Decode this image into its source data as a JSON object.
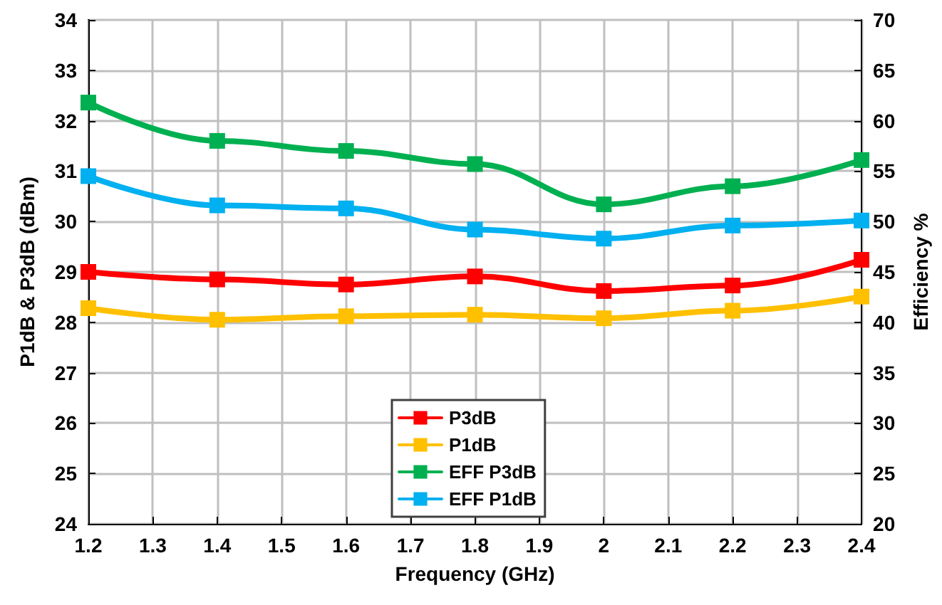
{
  "chart_data": {
    "type": "line",
    "xlabel": "Frequency (GHz)",
    "ylabel": "P1dB & P3dB (dBm)",
    "y2label": "Efficiency %",
    "x": [
      1.2,
      1.4,
      1.6,
      1.8,
      2.0,
      2.2,
      2.4
    ],
    "series": [
      {
        "name": "P3dB",
        "color": "#ff0000",
        "values": [
          29.0,
          28.85,
          28.75,
          28.91,
          28.62,
          28.73,
          29.24
        ]
      },
      {
        "name": "P1dB",
        "color": "#ffc000",
        "values": [
          28.28,
          28.05,
          28.12,
          28.15,
          28.08,
          28.23,
          28.51
        ]
      },
      {
        "name": "EFF P3dB",
        "color": "#00b050",
        "axis": "y2",
        "values": [
          61.8,
          58.0,
          57.0,
          55.7,
          51.7,
          53.5,
          56.1
        ]
      },
      {
        "name": "EFF P1dB",
        "color": "#00b0f0",
        "axis": "y2",
        "values": [
          54.5,
          51.6,
          51.3,
          49.2,
          48.3,
          49.6,
          50.1
        ]
      }
    ],
    "xlim": [
      1.2,
      2.4
    ],
    "xticks": [
      1.2,
      1.3,
      1.4,
      1.5,
      1.6,
      1.7,
      1.8,
      1.9,
      2,
      2.1,
      2.2,
      2.3,
      2.4
    ],
    "ylim": [
      24,
      34
    ],
    "yticks": [
      24,
      25,
      26,
      27,
      28,
      29,
      30,
      31,
      32,
      33,
      34
    ],
    "y2lim": [
      20,
      70
    ],
    "y2ticks": [
      20,
      25,
      30,
      35,
      40,
      45,
      50,
      55,
      60,
      65,
      70
    ],
    "grid": true,
    "legend": "bottom",
    "marker": "square",
    "line_style": "solid"
  }
}
